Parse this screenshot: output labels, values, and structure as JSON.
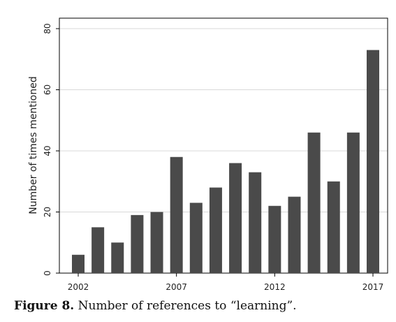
{
  "chart_data": {
    "type": "bar",
    "x": [
      2002,
      2003,
      2004,
      2005,
      2006,
      2007,
      2008,
      2009,
      2010,
      2011,
      2012,
      2013,
      2014,
      2015,
      2016,
      2017
    ],
    "values": [
      6,
      15,
      10,
      19,
      20,
      38,
      23,
      28,
      36,
      33,
      22,
      25,
      46,
      30,
      46,
      73
    ],
    "x_ticks": [
      "2002",
      "2007",
      "2012",
      "2017"
    ],
    "y_ticks": [
      "0",
      "20",
      "40",
      "60",
      "80"
    ],
    "ylim": [
      0,
      80
    ],
    "xlabel": "",
    "ylabel": "Number of times  mentioned",
    "grid": true,
    "bar_color": "#4a4a4a",
    "grid_color": "#d9d9d9"
  },
  "caption": {
    "label": "Figure 8.",
    "text": " Number of references to “learning”."
  }
}
